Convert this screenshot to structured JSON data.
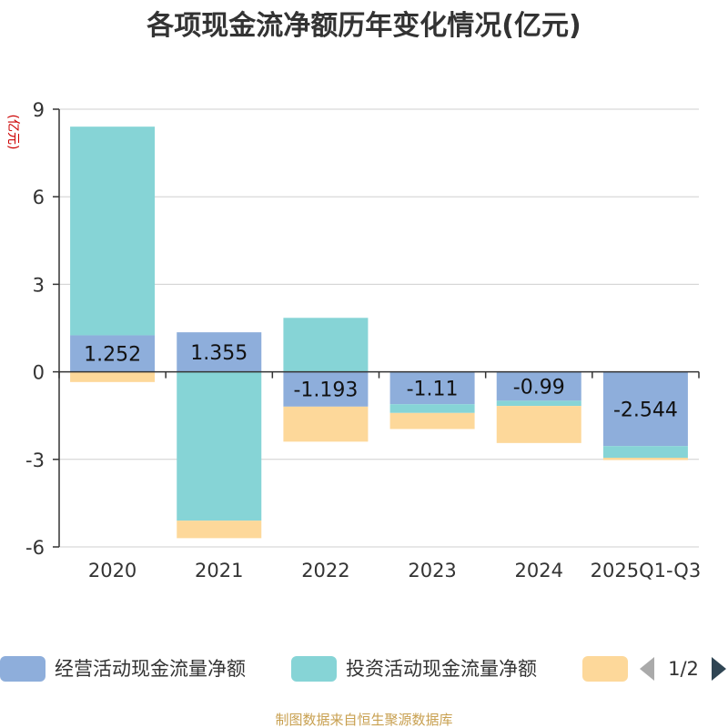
{
  "chart_data": {
    "type": "bar",
    "stacked": true,
    "title": "各项现金流净额历年变化情况(亿元)",
    "ylabel": "(亿元)",
    "ylim": [
      -6,
      9
    ],
    "yticks": [
      9,
      6,
      3,
      0,
      -3,
      -6
    ],
    "ytick_labels": [
      "9",
      "6",
      "3",
      "0",
      "-3",
      "-6"
    ],
    "grid": true,
    "categories": [
      "2020",
      "2021",
      "2022",
      "2023",
      "2024",
      "2025Q1-Q3"
    ],
    "series": [
      {
        "name": "经营活动现金流量净额",
        "color": "#8eaedb",
        "values": [
          1.252,
          1.355,
          -1.193,
          -1.11,
          -0.99,
          -2.544
        ],
        "labels": [
          "1.252",
          "1.355",
          "-1.193",
          "-1.11",
          "-0.99",
          "-2.544"
        ]
      },
      {
        "name": "投资活动现金流量净额",
        "color": "#86d4d6",
        "values": [
          7.15,
          -5.1,
          1.85,
          -0.3,
          -0.18,
          -0.4
        ]
      },
      {
        "name": "",
        "color": "#fdd89a",
        "values": [
          -0.35,
          -0.6,
          -1.2,
          -0.55,
          -1.27,
          -0.08
        ]
      }
    ],
    "legend": {
      "position": "bottom",
      "page": "1/2"
    },
    "source": "制图数据来自恒生聚源数据库"
  }
}
